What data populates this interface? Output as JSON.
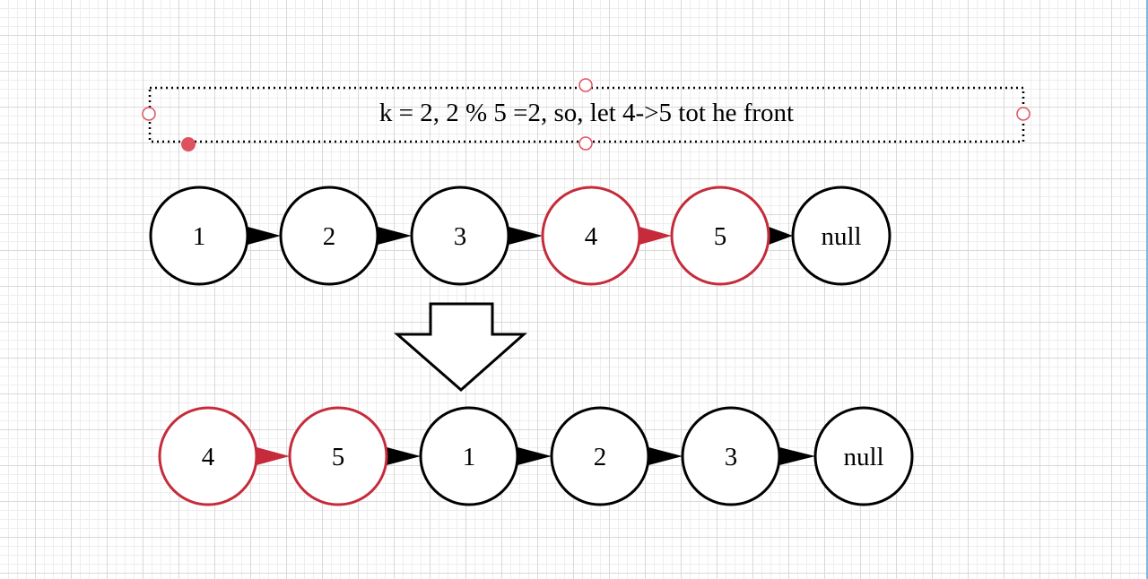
{
  "caption": {
    "text": "k = 2, 2 % 5 =2, so, let 4->5 tot he front"
  },
  "colors": {
    "highlight": "#c52b3a",
    "normal": "#000000",
    "selection": "#e0515f"
  },
  "icons": {
    "transform_arrow": "down-arrow-icon"
  },
  "before_list": [
    {
      "label": "1",
      "highlight": false
    },
    {
      "label": "2",
      "highlight": false
    },
    {
      "label": "3",
      "highlight": false
    },
    {
      "label": "4",
      "highlight": true
    },
    {
      "label": "5",
      "highlight": true
    },
    {
      "label": "null",
      "highlight": false
    }
  ],
  "after_list": [
    {
      "label": "4",
      "highlight": true
    },
    {
      "label": "5",
      "highlight": true
    },
    {
      "label": "1",
      "highlight": false
    },
    {
      "label": "2",
      "highlight": false
    },
    {
      "label": "3",
      "highlight": false
    },
    {
      "label": "null",
      "highlight": false
    }
  ]
}
